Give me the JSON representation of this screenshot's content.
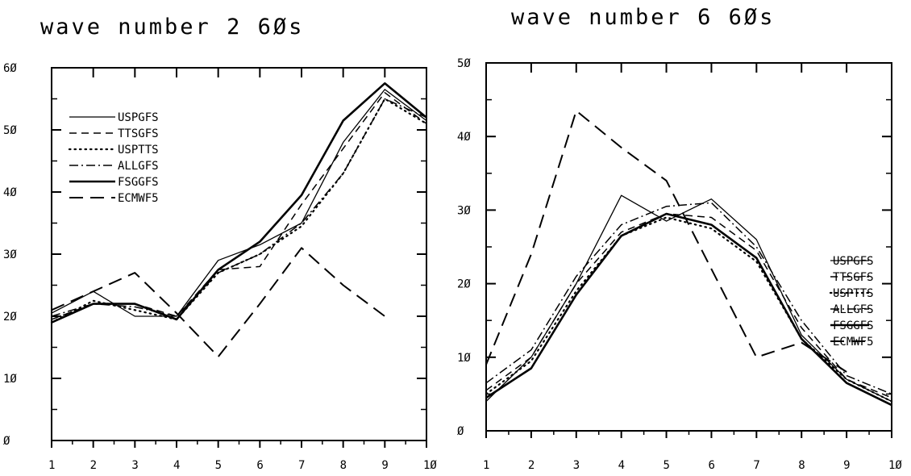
{
  "chart_data": [
    {
      "type": "line",
      "title": "wave number  2 6Øs",
      "xlabel": "",
      "ylabel": "",
      "x": [
        1,
        2,
        3,
        4,
        5,
        6,
        7,
        8,
        9,
        10
      ],
      "x_tick_labels": [
        "1",
        "2",
        "3",
        "4",
        "5",
        "6",
        "7",
        "8",
        "9",
        "1Ø"
      ],
      "xlim": [
        1,
        10
      ],
      "ylim": [
        0,
        60
      ],
      "y_ticks": [
        0,
        10,
        20,
        30,
        40,
        50,
        60
      ],
      "y_tick_labels": [
        "Ø",
        "1Ø",
        "2Ø",
        "3Ø",
        "4Ø",
        "5Ø",
        "6Ø"
      ],
      "grid": false,
      "legend_position": "top-left",
      "series": [
        {
          "name": "USPGFS",
          "style": "solid-thin",
          "values": [
            20.5,
            24,
            20,
            20,
            29,
            31.5,
            35,
            48,
            56.5,
            51.5
          ]
        },
        {
          "name": "TTSGFS",
          "style": "dashed",
          "values": [
            19.5,
            22,
            22,
            20,
            27.5,
            28,
            38,
            47,
            56,
            51
          ]
        },
        {
          "name": "USPTTS",
          "style": "dotted",
          "values": [
            19,
            22.5,
            21,
            19.5,
            27,
            30,
            34.5,
            43,
            55,
            51
          ]
        },
        {
          "name": "ALLGFS",
          "style": "dash-dot",
          "values": [
            20,
            22,
            21.5,
            20,
            27,
            30,
            35,
            43,
            55,
            52
          ]
        },
        {
          "name": "FSGGFS",
          "style": "solid-thick",
          "values": [
            19,
            22,
            22,
            19.5,
            27.5,
            32,
            39.5,
            51.5,
            57.5,
            52
          ]
        },
        {
          "name": "ECMWF5",
          "style": "long-dash",
          "values": [
            21,
            24,
            27,
            20.5,
            13.5,
            22,
            31,
            25,
            20,
            null
          ]
        }
      ]
    },
    {
      "type": "line",
      "title": "wave number  6 6Øs",
      "xlabel": "",
      "ylabel": "",
      "x": [
        1,
        2,
        3,
        4,
        5,
        6,
        7,
        8,
        9,
        10
      ],
      "x_tick_labels": [
        "1",
        "2",
        "3",
        "4",
        "5",
        "6",
        "7",
        "8",
        "9",
        "1Ø"
      ],
      "xlim": [
        1,
        10
      ],
      "ylim": [
        0,
        50
      ],
      "y_ticks": [
        0,
        10,
        20,
        30,
        40,
        50
      ],
      "y_tick_labels": [
        "Ø",
        "1Ø",
        "2Ø",
        "3Ø",
        "4Ø",
        "5Ø"
      ],
      "grid": false,
      "legend_position": "center-right",
      "series": [
        {
          "name": "USPGFS",
          "style": "solid-thin",
          "values": [
            4,
            10,
            20,
            32,
            28.5,
            31.5,
            26,
            13,
            7,
            4
          ]
        },
        {
          "name": "TTSGFS",
          "style": "dashed",
          "values": [
            5.5,
            10,
            20,
            27,
            29.5,
            29,
            24.5,
            14,
            7,
            4.5
          ]
        },
        {
          "name": "USPTTS",
          "style": "dotted",
          "values": [
            5,
            9.5,
            19,
            26.5,
            29,
            27.5,
            23,
            12.5,
            7,
            4
          ]
        },
        {
          "name": "ALLGFS",
          "style": "dash-dot",
          "values": [
            6.5,
            11,
            21,
            28,
            30.5,
            31,
            25,
            15,
            7.5,
            5
          ]
        },
        {
          "name": "FSGGFS",
          "style": "solid-thick",
          "values": [
            4.5,
            8.5,
            18.5,
            26.5,
            29.5,
            28,
            23.5,
            12.5,
            6.5,
            3.5
          ]
        },
        {
          "name": "ECMWF5",
          "style": "long-dash",
          "values": [
            9,
            24,
            43.5,
            38.5,
            34,
            22,
            10,
            12,
            8,
            null
          ]
        }
      ]
    }
  ]
}
